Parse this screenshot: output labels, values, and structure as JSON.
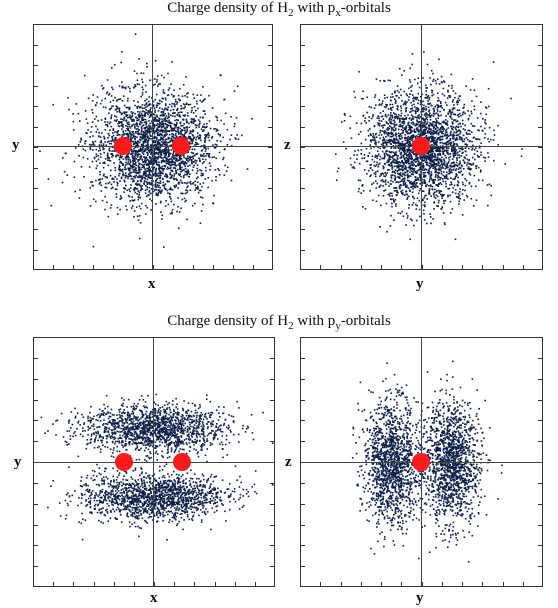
{
  "sections": [
    {
      "title_main": "Charge density of  H",
      "title_sub": "2",
      "title_mid": " with  p",
      "title_orbital_sub": "x",
      "title_tail": "-orbitals",
      "panels": [
        {
          "horizontal_label": "x",
          "vertical_label": "y",
          "density": "xy_px"
        },
        {
          "horizontal_label": "y",
          "vertical_label": "z",
          "density": "yz_px"
        }
      ]
    },
    {
      "title_main": "Charge density of  H",
      "title_sub": "2",
      "title_mid": " with  p",
      "title_orbital_sub": "y",
      "title_tail": "-orbitals",
      "panels": [
        {
          "horizontal_label": "x",
          "vertical_label": "y",
          "density": "xy_py"
        },
        {
          "horizontal_label": "y",
          "vertical_label": "z",
          "density": "yz_py"
        }
      ]
    }
  ],
  "colors": {
    "density": "#0b1f4a",
    "nucleus": "#ff1a1a",
    "frame": "#333333"
  }
}
